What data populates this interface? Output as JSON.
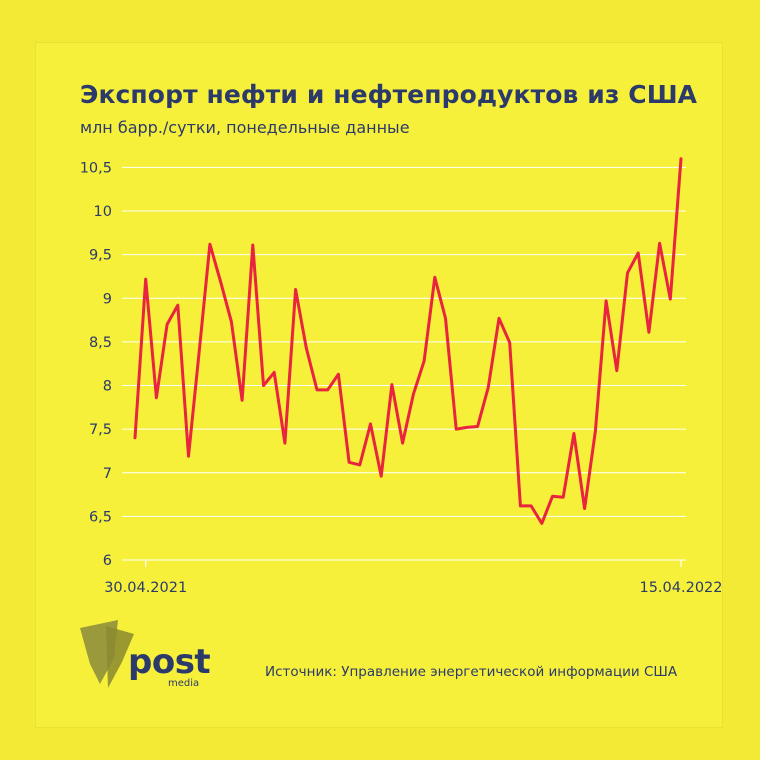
{
  "header": {
    "title": "Экспорт нефти и нефтепродуктов из США",
    "subtitle": "млн барр./сутки, понедельные данные"
  },
  "footer": {
    "source": "Источник: Управление энергетической информации США",
    "logo_text": "post",
    "logo_subtext": "media"
  },
  "colors": {
    "background": "#f6f03a",
    "line": "#e8243f",
    "text": "#2b3a6b",
    "grid": "#ffffff",
    "logo": "#8a8a3a"
  },
  "chart_data": {
    "type": "line",
    "title": "Экспорт нефти и нефтепродуктов из США",
    "subtitle": "млн барр./сутки, понедельные данные",
    "xlabel": "",
    "ylabel": "",
    "x_tick_labels": [
      "30.04.2021",
      "15.04.2022"
    ],
    "y_ticks": [
      6,
      6.5,
      7,
      7.5,
      8,
      8.5,
      9,
      9.5,
      10,
      10.5
    ],
    "y_tick_labels": [
      "6",
      "6,5",
      "7",
      "7,5",
      "8",
      "8,5",
      "9",
      "9,5",
      "10",
      "10,5"
    ],
    "ylim": [
      6,
      10.6
    ],
    "grid": true,
    "series": [
      {
        "values": [
          7.4,
          9.22,
          7.86,
          8.7,
          8.92,
          7.19,
          8.39,
          9.62,
          9.19,
          8.73,
          7.83,
          9.61,
          8.0,
          8.15,
          7.34,
          9.1,
          8.43,
          7.95,
          7.95,
          8.13,
          7.12,
          7.09,
          7.56,
          6.96,
          8.01,
          7.34,
          7.9,
          8.28,
          9.24,
          8.77,
          7.5,
          7.52,
          7.53,
          7.98,
          8.77,
          8.49,
          6.62,
          6.62,
          6.42,
          6.73,
          6.72,
          7.45,
          6.59,
          7.48,
          8.97,
          8.17,
          9.29,
          9.52,
          8.61,
          9.63,
          8.99,
          10.6
        ]
      }
    ]
  }
}
